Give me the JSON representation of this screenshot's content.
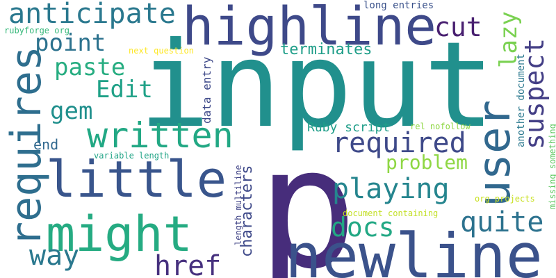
{
  "word_cloud": {
    "background": "#ffffff",
    "words": [
      {
        "text": "input",
        "color": "#21908d",
        "size_rank": 1
      },
      {
        "text": "p",
        "color": "#472d7b",
        "size_rank": 1
      },
      {
        "text": "newline",
        "color": "#3b528b",
        "size_rank": 2
      },
      {
        "text": "highline",
        "color": "#3e4989",
        "size_rank": 2
      },
      {
        "text": "user",
        "color": "#31688e",
        "size_rank": 2
      },
      {
        "text": "little",
        "color": "#39558c",
        "size_rank": 3
      },
      {
        "text": "might",
        "color": "#25ab82",
        "size_rank": 3
      },
      {
        "text": "requires",
        "color": "#2e6e8e",
        "size_rank": 3
      },
      {
        "text": "written",
        "color": "#22a884",
        "size_rank": 4
      },
      {
        "text": "anticipate",
        "color": "#2a788e",
        "size_rank": 4
      },
      {
        "text": "playing",
        "color": "#25858e",
        "size_rank": 4
      },
      {
        "text": "suspect",
        "color": "#433e85",
        "size_rank": 4
      },
      {
        "text": "required",
        "color": "#3e4989",
        "size_rank": 5
      },
      {
        "text": "quite",
        "color": "#2c728e",
        "size_rank": 5
      },
      {
        "text": "docs",
        "color": "#22a884",
        "size_rank": 5
      },
      {
        "text": "way",
        "color": "#2a788e",
        "size_rank": 5
      },
      {
        "text": "href",
        "color": "#46307e",
        "size_rank": 5
      },
      {
        "text": "lazy",
        "color": "#7ad151",
        "size_rank": 5
      },
      {
        "text": "cut",
        "color": "#481f70",
        "size_rank": 5
      },
      {
        "text": "point",
        "color": "#2c728e",
        "size_rank": 6
      },
      {
        "text": "paste",
        "color": "#27ad81",
        "size_rank": 6
      },
      {
        "text": "Edit",
        "color": "#1fa187",
        "size_rank": 6
      },
      {
        "text": "gem",
        "color": "#21908d",
        "size_rank": 6
      },
      {
        "text": "problem",
        "color": "#8fd744",
        "size_rank": 6
      },
      {
        "text": "characters",
        "color": "#3e4989",
        "size_rank": 6
      },
      {
        "text": "terminates",
        "color": "#1f9e89",
        "size_rank": 7
      },
      {
        "text": "end",
        "color": "#31688e",
        "size_rank": 7
      },
      {
        "text": "Ruby script",
        "color": "#1f9e89",
        "size_rank": 7
      },
      {
        "text": "data entry",
        "color": "#3e4989",
        "size_rank": 8
      },
      {
        "text": "another document",
        "color": "#2a788e",
        "size_rank": 8
      },
      {
        "text": "long entries",
        "color": "#3b528b",
        "size_rank": 8
      },
      {
        "text": "rubyforge org",
        "color": "#35b779",
        "size_rank": 9
      },
      {
        "text": "next question",
        "color": "#fde725",
        "size_rank": 9
      },
      {
        "text": "variable length",
        "color": "#20a486",
        "size_rank": 9
      },
      {
        "text": "rel nofollow",
        "color": "#8fd744",
        "size_rank": 9
      },
      {
        "text": "length multiline",
        "color": "#414487",
        "size_rank": 9
      },
      {
        "text": "document containing",
        "color": "#c2df23",
        "size_rank": 9
      },
      {
        "text": "org projects",
        "color": "#c8e020",
        "size_rank": 9
      },
      {
        "text": "missing something",
        "color": "#5ec962",
        "size_rank": 9
      }
    ]
  }
}
